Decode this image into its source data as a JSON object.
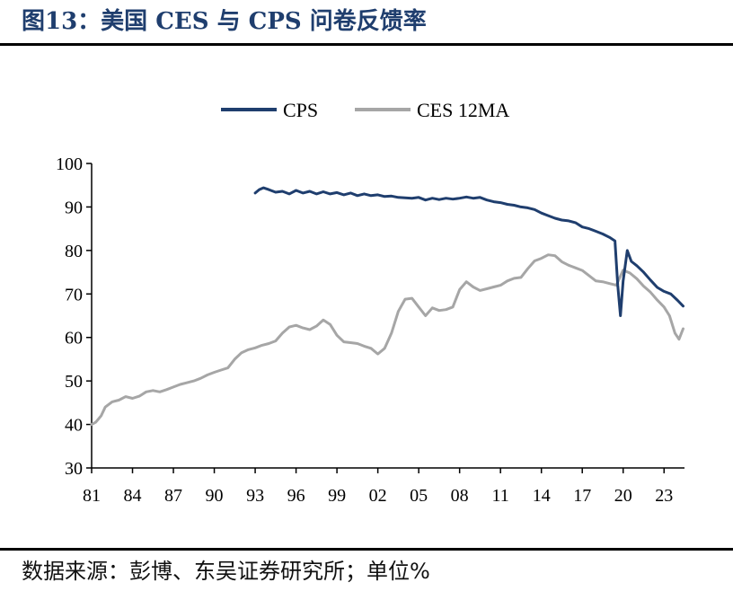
{
  "header": {
    "title": "图13：美国 CES 与 CPS 问卷反馈率"
  },
  "footer": {
    "source": "数据来源：彭博、东吴证券研究所；单位%"
  },
  "colors": {
    "cps": "#1f3e6e",
    "ces": "#a6a6a6",
    "title": "#1f3e6e"
  },
  "chart_data": {
    "type": "line",
    "title": "",
    "xlabel": "",
    "ylabel": "",
    "xlim": [
      1981,
      2024.5
    ],
    "ylim": [
      30,
      100
    ],
    "yticks": [
      30,
      40,
      50,
      60,
      70,
      80,
      90,
      100
    ],
    "xticks": [
      {
        "value": 1981,
        "label": "81"
      },
      {
        "value": 1984,
        "label": "84"
      },
      {
        "value": 1987,
        "label": "87"
      },
      {
        "value": 1990,
        "label": "90"
      },
      {
        "value": 1993,
        "label": "93"
      },
      {
        "value": 1996,
        "label": "96"
      },
      {
        "value": 1999,
        "label": "99"
      },
      {
        "value": 2002,
        "label": "02"
      },
      {
        "value": 2005,
        "label": "05"
      },
      {
        "value": 2008,
        "label": "08"
      },
      {
        "value": 2011,
        "label": "11"
      },
      {
        "value": 2014,
        "label": "14"
      },
      {
        "value": 2017,
        "label": "17"
      },
      {
        "value": 2020,
        "label": "20"
      },
      {
        "value": 2023,
        "label": "23"
      }
    ],
    "grid": false,
    "legend_position": "top-center",
    "series": [
      {
        "name": "CPS",
        "color": "#1f3e6e",
        "x": [
          1993.0,
          1993.3,
          1993.6,
          1994.0,
          1994.5,
          1995.0,
          1995.5,
          1996.0,
          1996.5,
          1997.0,
          1997.5,
          1998.0,
          1998.5,
          1999.0,
          1999.5,
          2000.0,
          2000.5,
          2001.0,
          2001.5,
          2002.0,
          2002.5,
          2003.0,
          2003.5,
          2004.0,
          2004.5,
          2005.0,
          2005.5,
          2006.0,
          2006.5,
          2007.0,
          2007.5,
          2008.0,
          2008.5,
          2009.0,
          2009.5,
          2010.0,
          2010.5,
          2011.0,
          2011.5,
          2012.0,
          2012.5,
          2013.0,
          2013.5,
          2014.0,
          2014.5,
          2015.0,
          2015.5,
          2016.0,
          2016.5,
          2017.0,
          2017.5,
          2018.0,
          2018.5,
          2019.0,
          2019.4,
          2019.6,
          2019.8,
          2020.0,
          2020.3,
          2020.6,
          2021.0,
          2021.5,
          2022.0,
          2022.5,
          2023.0,
          2023.5,
          2024.0,
          2024.4
        ],
        "values": [
          93.2,
          94.0,
          94.4,
          94.0,
          93.4,
          93.6,
          93.0,
          93.8,
          93.2,
          93.6,
          93.0,
          93.5,
          93.0,
          93.3,
          92.8,
          93.2,
          92.6,
          93.0,
          92.6,
          92.8,
          92.4,
          92.5,
          92.2,
          92.1,
          92.0,
          92.2,
          91.6,
          92.0,
          91.7,
          92.0,
          91.8,
          92.0,
          92.3,
          92.0,
          92.2,
          91.6,
          91.2,
          91.0,
          90.6,
          90.4,
          90.0,
          89.8,
          89.4,
          88.6,
          88.0,
          87.4,
          87.0,
          86.8,
          86.4,
          85.4,
          85.0,
          84.4,
          83.8,
          83.0,
          82.2,
          72.0,
          65.0,
          73.0,
          80.0,
          77.5,
          76.5,
          75.0,
          73.2,
          71.5,
          70.6,
          70.0,
          68.5,
          67.2
        ]
      },
      {
        "name": "CES 12MA",
        "color": "#a6a6a6",
        "x": [
          1981.0,
          1981.3,
          1981.7,
          1982.0,
          1982.5,
          1983.0,
          1983.5,
          1984.0,
          1984.5,
          1985.0,
          1985.5,
          1986.0,
          1986.5,
          1987.0,
          1987.5,
          1988.0,
          1988.5,
          1989.0,
          1989.5,
          1990.0,
          1990.5,
          1991.0,
          1991.5,
          1992.0,
          1992.5,
          1993.0,
          1993.5,
          1994.0,
          1994.5,
          1995.0,
          1995.5,
          1996.0,
          1996.5,
          1997.0,
          1997.5,
          1998.0,
          1998.5,
          1999.0,
          1999.5,
          2000.0,
          2000.5,
          2001.0,
          2001.5,
          2002.0,
          2002.5,
          2003.0,
          2003.5,
          2004.0,
          2004.5,
          2005.0,
          2005.5,
          2006.0,
          2006.5,
          2007.0,
          2007.5,
          2008.0,
          2008.5,
          2009.0,
          2009.5,
          2010.0,
          2010.5,
          2011.0,
          2011.5,
          2012.0,
          2012.5,
          2013.0,
          2013.5,
          2014.0,
          2014.5,
          2015.0,
          2015.5,
          2016.0,
          2016.5,
          2017.0,
          2017.5,
          2018.0,
          2018.5,
          2019.0,
          2019.5,
          2020.0,
          2020.5,
          2021.0,
          2021.5,
          2022.0,
          2022.5,
          2023.0,
          2023.4,
          2023.8,
          2024.1,
          2024.4
        ],
        "values": [
          40.0,
          40.5,
          42.0,
          44.0,
          45.2,
          45.6,
          46.4,
          46.0,
          46.5,
          47.5,
          47.8,
          47.5,
          48.0,
          48.6,
          49.2,
          49.6,
          50.0,
          50.6,
          51.4,
          52.0,
          52.5,
          53.0,
          55.0,
          56.5,
          57.2,
          57.6,
          58.2,
          58.6,
          59.2,
          61.0,
          62.4,
          62.8,
          62.2,
          61.8,
          62.6,
          64.0,
          63.0,
          60.5,
          59.0,
          58.8,
          58.6,
          58.0,
          57.5,
          56.2,
          57.5,
          61.0,
          66.0,
          68.8,
          69.0,
          67.0,
          65.0,
          66.8,
          66.2,
          66.4,
          67.0,
          71.0,
          72.8,
          71.6,
          70.8,
          71.2,
          71.6,
          72.0,
          73.0,
          73.6,
          73.8,
          75.8,
          77.6,
          78.2,
          79.0,
          78.8,
          77.4,
          76.6,
          76.0,
          75.4,
          74.2,
          73.0,
          72.8,
          72.4,
          72.0,
          75.5,
          74.8,
          73.5,
          71.8,
          70.4,
          68.6,
          67.0,
          65.0,
          61.0,
          59.6,
          62.0
        ]
      }
    ]
  }
}
